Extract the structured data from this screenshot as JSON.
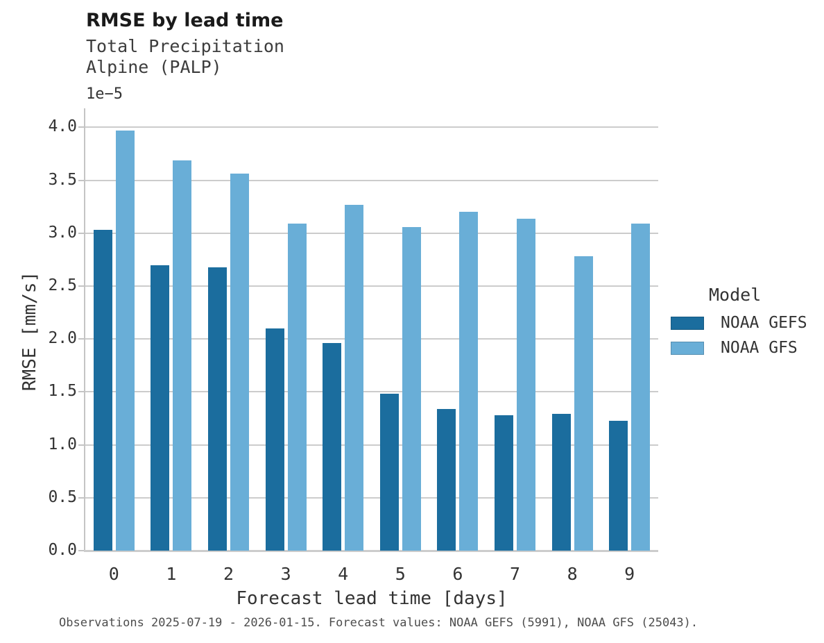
{
  "header": {
    "title": "RMSE by lead time",
    "subtitle_line1": "Total Precipitation",
    "subtitle_line2": "Alpine (PALP)"
  },
  "chart_data": {
    "type": "bar",
    "title": "RMSE by lead time",
    "subtitle": [
      "Total Precipitation",
      "Alpine (PALP)"
    ],
    "categories": [
      "0",
      "1",
      "2",
      "3",
      "4",
      "5",
      "6",
      "7",
      "8",
      "9"
    ],
    "series": [
      {
        "name": "NOAA GEFS",
        "color": "#1b6d9e",
        "values": [
          3.03,
          2.7,
          2.68,
          2.1,
          1.96,
          1.48,
          1.34,
          1.28,
          1.29,
          1.23
        ]
      },
      {
        "name": "NOAA GFS",
        "color": "#69aed7",
        "values": [
          3.97,
          3.69,
          3.56,
          3.09,
          3.27,
          3.06,
          3.2,
          3.14,
          2.78,
          3.09
        ]
      }
    ],
    "value_scale_note": "values are in units of 1e-5",
    "offset_text": "1e−5",
    "xlabel": "Forecast lead time [days]",
    "ylabel": "RMSE [mm/s]",
    "ylim": [
      0,
      4.18
    ],
    "yticks": [
      0.0,
      0.5,
      1.0,
      1.5,
      2.0,
      2.5,
      3.0,
      3.5,
      4.0
    ],
    "ytick_labels": [
      "0.0",
      "0.5",
      "1.0",
      "1.5",
      "2.0",
      "2.5",
      "3.0",
      "3.5",
      "4.0"
    ],
    "grid": "horizontal",
    "legend_position": "right"
  },
  "legend": {
    "title": "Model",
    "entries": [
      {
        "label": "NOAA GEFS",
        "color": "#1b6d9e"
      },
      {
        "label": "NOAA GFS",
        "color": "#69aed7"
      }
    ]
  },
  "footer": {
    "note": "Observations 2025-07-19 - 2026-01-15. Forecast values: NOAA GEFS (5991), NOAA GFS (25043)."
  },
  "colors": {
    "background": "#ffffff",
    "gridline": "#cccccc",
    "spine": "#c4c4c4",
    "title_text": "#1a1a1a",
    "subtitle_text": "#3d3d3d",
    "tick_text": "#333333",
    "footer_text": "#4d4d4d",
    "series_dark": "#1b6d9e",
    "series_light": "#69aed7"
  }
}
